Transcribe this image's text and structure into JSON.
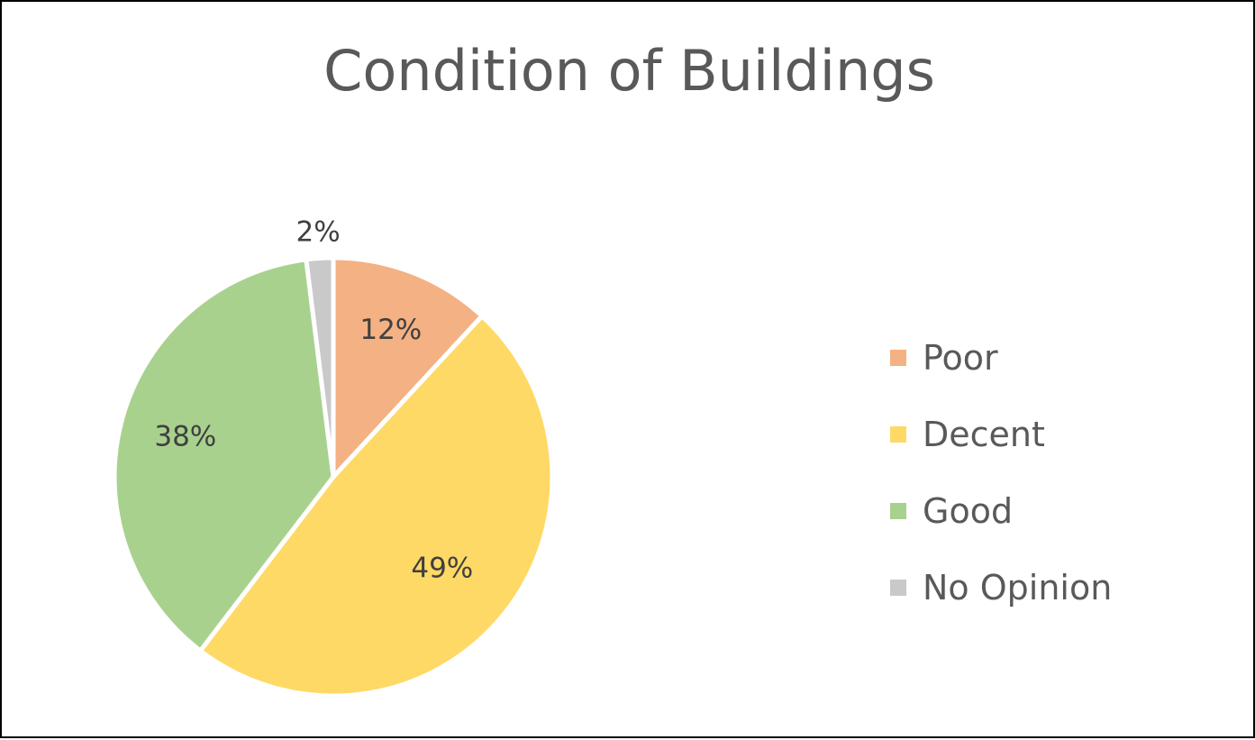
{
  "chart_data": {
    "type": "pie",
    "title": "Condition of Buildings",
    "categories": [
      "Poor",
      "Decent",
      "Good",
      "No Opinion"
    ],
    "values": [
      12,
      49,
      38,
      2
    ],
    "data_labels": [
      "12%",
      "49%",
      "38%",
      "2%"
    ],
    "colors": [
      "#F4B183",
      "#FFD966",
      "#A9D18E",
      "#C9C9C9"
    ],
    "legend_position": "right",
    "start_angle_deg": 0,
    "direction": "clockwise"
  }
}
